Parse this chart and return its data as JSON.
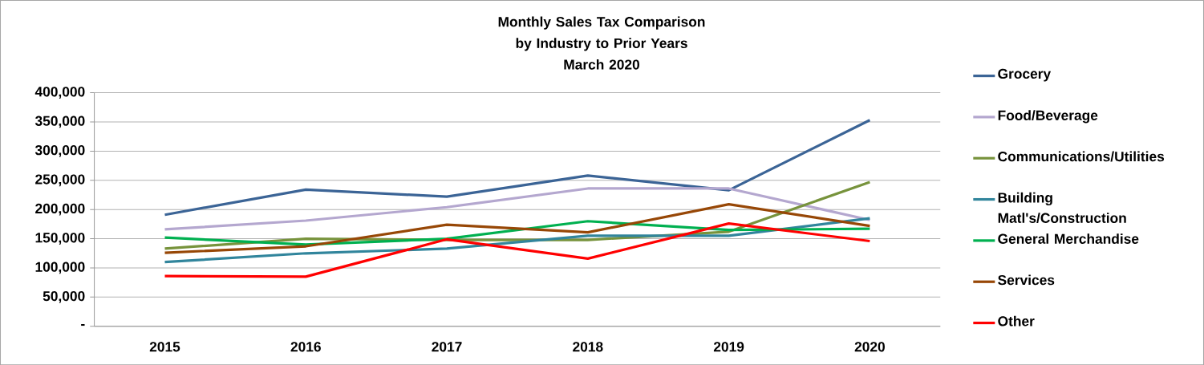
{
  "chart_data": {
    "type": "line",
    "title": "Monthly Sales Tax Comparison by Industry to Prior Years",
    "subtitle": "March 2020",
    "categories": [
      "2015",
      "2016",
      "2017",
      "2018",
      "2019",
      "2020"
    ],
    "ylim": [
      0,
      400000
    ],
    "yticks": [
      {
        "value": 0,
        "label": "-"
      },
      {
        "value": 50000,
        "label": "50,000"
      },
      {
        "value": 100000,
        "label": "100,000"
      },
      {
        "value": 150000,
        "label": "150,000"
      },
      {
        "value": 200000,
        "label": "200,000"
      },
      {
        "value": 250000,
        "label": "250,000"
      },
      {
        "value": 300000,
        "label": "300,000"
      },
      {
        "value": 350000,
        "label": "350,000"
      },
      {
        "value": 400000,
        "label": "400,000"
      }
    ],
    "grid": "y",
    "legend": "right",
    "series": [
      {
        "name": "Grocery",
        "color": "#3b6496",
        "values": [
          191000,
          234000,
          222000,
          258000,
          233000,
          353000
        ]
      },
      {
        "name": "Food/Beverage",
        "color": "#b4a7cf",
        "values": [
          166000,
          181000,
          204000,
          236000,
          236000,
          182000
        ]
      },
      {
        "name": "Communications/Utilities",
        "color": "#77933c",
        "values": [
          133000,
          150000,
          148000,
          148000,
          162000,
          247000
        ]
      },
      {
        "name": "Building Matl's/Construction",
        "color": "#31859c",
        "values": [
          110000,
          125000,
          133000,
          155000,
          155000,
          185000
        ]
      },
      {
        "name": "General Merchandise",
        "color": "#00b050",
        "values": [
          152000,
          140000,
          150000,
          180000,
          165000,
          167000
        ]
      },
      {
        "name": "Services",
        "color": "#974706",
        "values": [
          126000,
          137000,
          174000,
          161000,
          209000,
          172000
        ]
      },
      {
        "name": "Other",
        "color": "#ff0000",
        "values": [
          86000,
          85000,
          149000,
          116000,
          176000,
          146000
        ]
      }
    ]
  }
}
